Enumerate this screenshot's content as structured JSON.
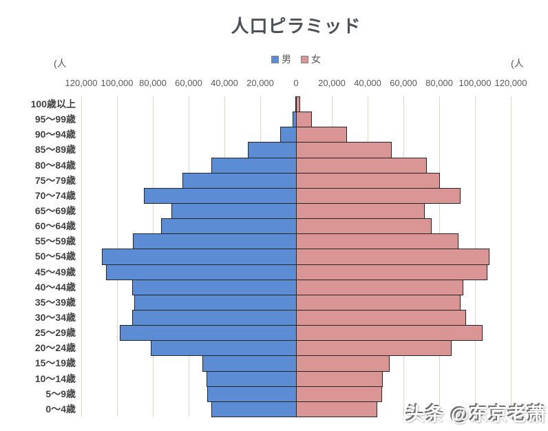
{
  "title": "人口ピラミッド",
  "legend": {
    "male": {
      "label": "男",
      "color": "#5B8CD4"
    },
    "female": {
      "label": "女",
      "color": "#D99694"
    }
  },
  "axis_units": {
    "left": "(人",
    "right": "(人"
  },
  "watermark": "头条 @东京老萧",
  "colors": {
    "male_bar": "#5B8CD4",
    "female_bar": "#D99694",
    "bar_border": "#242424",
    "gridline": "#d9d5c6",
    "title_text": "#4b5159",
    "tick_text": "#595959"
  },
  "chart_data": {
    "type": "bar",
    "subtype": "population_pyramid",
    "title": "人口ピラミッド",
    "unit": "人",
    "grid": true,
    "legend_position": "top",
    "categories_top_to_bottom": [
      "100歳以上",
      "95～99歳",
      "90～94歳",
      "85～89歳",
      "80～84歳",
      "75～79歳",
      "70～74歳",
      "65～69歳",
      "60～64歳",
      "55～59歳",
      "50～54歳",
      "45～49歳",
      "40～44歳",
      "35～39歳",
      "30～34歳",
      "25～29歳",
      "20～24歳",
      "15～19歳",
      "10～14歳",
      "5～9歳",
      "0～4歳"
    ],
    "series": [
      {
        "name": "男",
        "side": "left",
        "color": "#5B8CD4",
        "values": [
          500,
          2000,
          9000,
          27000,
          47500,
          63500,
          85000,
          69500,
          75500,
          91000,
          108500,
          106000,
          91500,
          90500,
          91500,
          98500,
          81000,
          52500,
          50000,
          49500,
          47500
        ]
      },
      {
        "name": "女",
        "side": "right",
        "color": "#D99694",
        "values": [
          2000,
          8500,
          28000,
          53000,
          72500,
          80000,
          91500,
          71500,
          75500,
          90500,
          107500,
          106500,
          93000,
          91500,
          94500,
          104000,
          86500,
          52000,
          48000,
          47500,
          45000
        ]
      }
    ],
    "x_axis": {
      "max_each_side": 120000,
      "tick_interval": 20000,
      "tick_labels": [
        "120,000",
        "100,000",
        "80,000",
        "60,000",
        "40,000",
        "20,000",
        "0",
        "20,000",
        "40,000",
        "60,000",
        "80,000",
        "100,000",
        "120,000"
      ]
    }
  }
}
